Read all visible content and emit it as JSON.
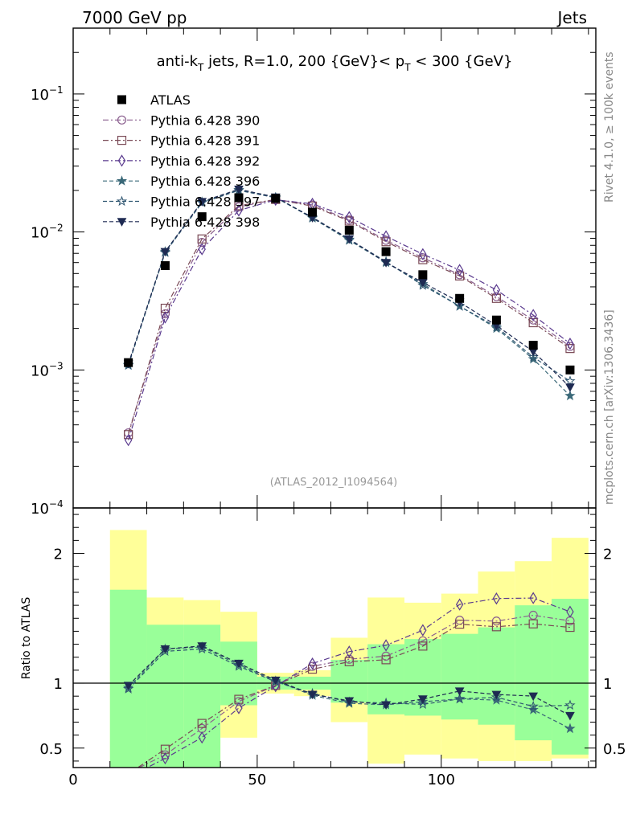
{
  "header": {
    "left": "7000 GeV pp",
    "right": "Jets"
  },
  "side": {
    "rivet": "Rivet 4.1.0, ≥ 100k events",
    "mcplots": "mcplots.cern.ch [arXiv:1306.3436]"
  },
  "colors": {
    "band_outer": "#ffff99",
    "band_inner": "#99ff99",
    "data": "#000000"
  },
  "chart_data": {
    "type": "line",
    "title": "anti-kT jets, R=1.0, 200 {GeV}< pT < 300 {GeV}",
    "title_parts": {
      "pre": "anti-k",
      "sub1": "T",
      "mid": " jets, R=1.0, 200 {GeV}< p",
      "sub2": "T",
      "post": " < 300 {GeV}"
    },
    "watermark": "(ATLAS_2012_I1094564)",
    "xlim": [
      0,
      142
    ],
    "x_ticks": [
      "0",
      "50",
      "100"
    ],
    "x_tick_values": [
      0,
      50,
      100
    ],
    "main": {
      "yscale": "log",
      "ylim": [
        0.0001,
        0.3
      ],
      "y_ticks": [
        {
          "value": 0.1,
          "base": "10",
          "exp": "−1"
        },
        {
          "value": 0.01,
          "base": "10",
          "exp": "−2"
        },
        {
          "value": 0.001,
          "base": "10",
          "exp": "−3"
        },
        {
          "value": 0.0001,
          "base": "10",
          "exp": "−4"
        }
      ]
    },
    "ratio": {
      "ylabel": "Ratio to ATLAS",
      "ylim": [
        0.35,
        2.35
      ],
      "y_ticks": [
        "0.5",
        "1",
        "2"
      ],
      "y_tick_values": [
        0.5,
        1,
        2
      ],
      "band_edges": [
        10,
        20,
        30,
        40,
        50,
        60,
        70,
        80,
        90,
        100,
        110,
        120,
        130,
        140
      ],
      "band_outer": [
        [
          0.35,
          2.18
        ],
        [
          0.42,
          1.66
        ],
        [
          0.35,
          1.64
        ],
        [
          0.58,
          1.55
        ],
        [
          0.92,
          1.08
        ],
        [
          0.9,
          1.1
        ],
        [
          0.7,
          1.35
        ],
        [
          0.38,
          1.66
        ],
        [
          0.45,
          1.62
        ],
        [
          0.42,
          1.69
        ],
        [
          0.4,
          1.86
        ],
        [
          0.4,
          1.94
        ],
        [
          0.42,
          2.12
        ]
      ],
      "band_inner": [
        [
          0.35,
          1.72
        ],
        [
          0.35,
          1.45
        ],
        [
          0.35,
          1.45
        ],
        [
          0.83,
          1.32
        ],
        [
          0.95,
          1.05
        ],
        [
          0.95,
          1.05
        ],
        [
          0.85,
          1.18
        ],
        [
          0.76,
          1.3
        ],
        [
          0.75,
          1.34
        ],
        [
          0.72,
          1.38
        ],
        [
          0.68,
          1.43
        ],
        [
          0.56,
          1.6
        ],
        [
          0.45,
          1.65
        ]
      ]
    },
    "x": [
      15,
      25,
      35,
      45,
      55,
      65,
      75,
      85,
      95,
      105,
      115,
      125,
      135
    ],
    "data": {
      "name": "ATLAS",
      "values": [
        0.00113,
        0.0057,
        0.0129,
        0.0177,
        0.0175,
        0.0139,
        0.0103,
        0.0072,
        0.0049,
        0.0033,
        0.0023,
        0.00151,
        0.001
      ]
    },
    "series": [
      {
        "name": "Pythia 6.428 390",
        "color": "#8a5e8e",
        "marker": "circle",
        "dash": "7,3,2,3",
        "values": [
          0.00035,
          0.00255,
          0.0084,
          0.0152,
          0.0172,
          0.0157,
          0.0122,
          0.0087,
          0.0065,
          0.0049,
          0.0034,
          0.0023,
          0.00148
        ]
      },
      {
        "name": "Pythia 6.428 391",
        "color": "#7a4a56",
        "marker": "square",
        "dash": "7,3,2,3",
        "values": [
          0.00034,
          0.0028,
          0.0089,
          0.0155,
          0.0172,
          0.0154,
          0.012,
          0.0085,
          0.0063,
          0.0048,
          0.0033,
          0.0022,
          0.00143
        ]
      },
      {
        "name": "Pythia 6.428 392",
        "color": "#5a3a8e",
        "marker": "diamond",
        "dash": "7,3,2,3",
        "values": [
          0.00031,
          0.0024,
          0.0075,
          0.0143,
          0.0171,
          0.016,
          0.0128,
          0.0093,
          0.0069,
          0.0053,
          0.0038,
          0.0025,
          0.00155
        ]
      },
      {
        "name": "Pythia 6.428 396",
        "color": "#3a6878",
        "marker": "star-filled",
        "dash": "5,3",
        "values": [
          0.00109,
          0.0072,
          0.0165,
          0.0202,
          0.0178,
          0.0126,
          0.0087,
          0.006,
          0.0042,
          0.0029,
          0.002,
          0.0012,
          0.00065
        ]
      },
      {
        "name": "Pythia 6.428 397",
        "color": "#2e5570",
        "marker": "star-open",
        "dash": "5,3",
        "values": [
          0.00108,
          0.0071,
          0.0163,
          0.02,
          0.0177,
          0.0128,
          0.0088,
          0.0061,
          0.0041,
          0.0029,
          0.00205,
          0.00124,
          0.00083
        ]
      },
      {
        "name": "Pythia 6.428 398",
        "color": "#1e2a52",
        "marker": "triangle-down",
        "dash": "5,3",
        "values": [
          0.00111,
          0.0072,
          0.0166,
          0.0204,
          0.0179,
          0.0127,
          0.0089,
          0.006,
          0.0043,
          0.0031,
          0.0021,
          0.00136,
          0.00075
        ]
      }
    ]
  }
}
